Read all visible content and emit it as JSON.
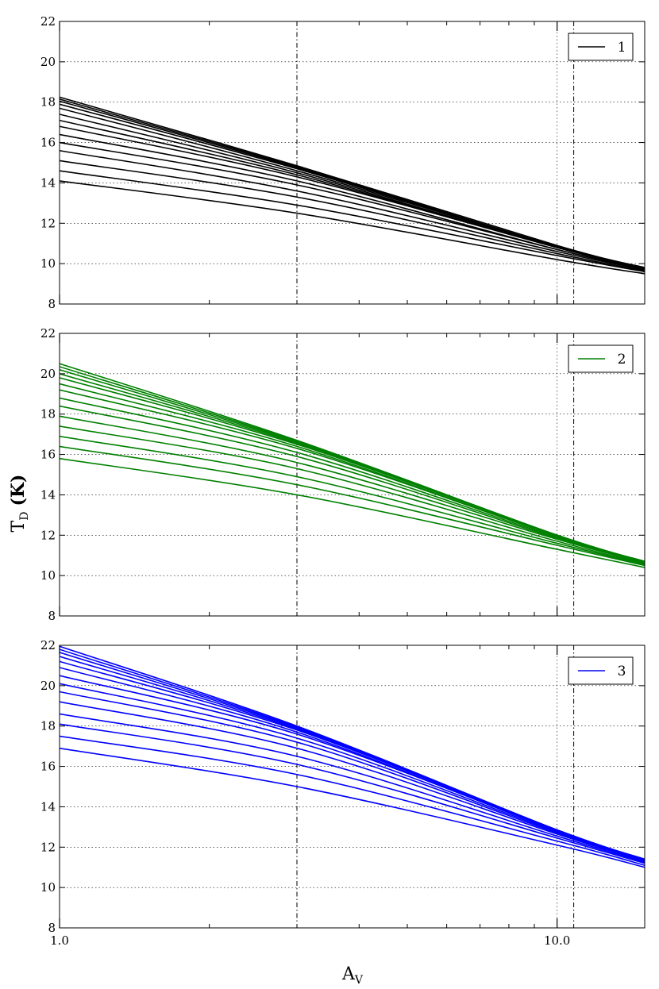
{
  "figure": {
    "ylabel_main": "T",
    "ylabel_sub": "D",
    "ylabel_unit": "(K)",
    "xlabel_main": "A",
    "xlabel_sub": "V"
  },
  "chart_data": [
    {
      "type": "line",
      "xscale": "log",
      "xlim": [
        1.0,
        15.0
      ],
      "ylim": [
        8,
        22
      ],
      "xticklabels": [],
      "yticks": [
        8,
        10,
        12,
        14,
        16,
        18,
        20,
        22
      ],
      "grid": true,
      "legend": {
        "position": "top-right",
        "label": "1"
      },
      "color": "#000000",
      "vlines": [
        3.0,
        10.0,
        10.8
      ],
      "series": [
        {
          "x": [
            1.0,
            3.0,
            10.0,
            15.0
          ],
          "values": [
            14.1,
            12.5,
            10.2,
            9.5
          ]
        },
        {
          "x": [
            1.0,
            3.0,
            10.0,
            15.0
          ],
          "values": [
            14.6,
            12.9,
            10.4,
            9.6
          ]
        },
        {
          "x": [
            1.0,
            3.0,
            10.0,
            15.0
          ],
          "values": [
            15.1,
            13.3,
            10.5,
            9.65
          ]
        },
        {
          "x": [
            1.0,
            3.0,
            10.0,
            15.0
          ],
          "values": [
            15.6,
            13.6,
            10.6,
            9.7
          ]
        },
        {
          "x": [
            1.0,
            3.0,
            10.0,
            15.0
          ],
          "values": [
            16.0,
            13.9,
            10.7,
            9.7
          ]
        },
        {
          "x": [
            1.0,
            3.0,
            10.0,
            15.0
          ],
          "values": [
            16.4,
            14.1,
            10.7,
            9.75
          ]
        },
        {
          "x": [
            1.0,
            3.0,
            10.0,
            15.0
          ],
          "values": [
            16.8,
            14.3,
            10.8,
            9.75
          ]
        },
        {
          "x": [
            1.0,
            3.0,
            10.0,
            15.0
          ],
          "values": [
            17.1,
            14.4,
            10.8,
            9.8
          ]
        },
        {
          "x": [
            1.0,
            3.0,
            10.0,
            15.0
          ],
          "values": [
            17.4,
            14.5,
            10.8,
            9.8
          ]
        },
        {
          "x": [
            1.0,
            3.0,
            10.0,
            15.0
          ],
          "values": [
            17.7,
            14.6,
            10.85,
            9.8
          ]
        },
        {
          "x": [
            1.0,
            3.0,
            10.0,
            15.0
          ],
          "values": [
            17.9,
            14.7,
            10.85,
            9.8
          ]
        },
        {
          "x": [
            1.0,
            3.0,
            10.0,
            15.0
          ],
          "values": [
            18.05,
            14.75,
            10.85,
            9.8
          ]
        },
        {
          "x": [
            1.0,
            3.0,
            10.0,
            15.0
          ],
          "values": [
            18.15,
            14.8,
            10.85,
            9.8
          ]
        },
        {
          "x": [
            1.0,
            3.0,
            10.0,
            15.0
          ],
          "values": [
            18.25,
            14.85,
            10.9,
            9.8
          ]
        }
      ]
    },
    {
      "type": "line",
      "xscale": "log",
      "xlim": [
        1.0,
        15.0
      ],
      "ylim": [
        8,
        22
      ],
      "xticklabels": [],
      "yticks": [
        8,
        10,
        12,
        14,
        16,
        18,
        20,
        22
      ],
      "grid": true,
      "legend": {
        "position": "top-right",
        "label": "2"
      },
      "color": "#008000",
      "vlines": [
        3.0,
        10.0,
        10.8
      ],
      "series": [
        {
          "x": [
            1.0,
            3.0,
            10.0,
            15.0
          ],
          "values": [
            15.8,
            14.0,
            11.3,
            10.4
          ]
        },
        {
          "x": [
            1.0,
            3.0,
            10.0,
            15.0
          ],
          "values": [
            16.4,
            14.5,
            11.5,
            10.5
          ]
        },
        {
          "x": [
            1.0,
            3.0,
            10.0,
            15.0
          ],
          "values": [
            16.9,
            14.9,
            11.6,
            10.55
          ]
        },
        {
          "x": [
            1.0,
            3.0,
            10.0,
            15.0
          ],
          "values": [
            17.4,
            15.3,
            11.7,
            10.6
          ]
        },
        {
          "x": [
            1.0,
            3.0,
            10.0,
            15.0
          ],
          "values": [
            17.9,
            15.6,
            11.8,
            10.65
          ]
        },
        {
          "x": [
            1.0,
            3.0,
            10.0,
            15.0
          ],
          "values": [
            18.4,
            15.9,
            11.85,
            10.65
          ]
        },
        {
          "x": [
            1.0,
            3.0,
            10.0,
            15.0
          ],
          "values": [
            18.8,
            16.1,
            11.9,
            10.7
          ]
        },
        {
          "x": [
            1.0,
            3.0,
            10.0,
            15.0
          ],
          "values": [
            19.2,
            16.3,
            11.95,
            10.7
          ]
        },
        {
          "x": [
            1.0,
            3.0,
            10.0,
            15.0
          ],
          "values": [
            19.5,
            16.4,
            11.95,
            10.7
          ]
        },
        {
          "x": [
            1.0,
            3.0,
            10.0,
            15.0
          ],
          "values": [
            19.8,
            16.5,
            12.0,
            10.7
          ]
        },
        {
          "x": [
            1.0,
            3.0,
            10.0,
            15.0
          ],
          "values": [
            20.0,
            16.55,
            12.0,
            10.7
          ]
        },
        {
          "x": [
            1.0,
            3.0,
            10.0,
            15.0
          ],
          "values": [
            20.2,
            16.6,
            12.0,
            10.7
          ]
        },
        {
          "x": [
            1.0,
            3.0,
            10.0,
            15.0
          ],
          "values": [
            20.35,
            16.65,
            12.0,
            10.7
          ]
        },
        {
          "x": [
            1.0,
            3.0,
            10.0,
            15.0
          ],
          "values": [
            20.5,
            16.7,
            12.0,
            10.7
          ]
        }
      ]
    },
    {
      "type": "line",
      "xscale": "log",
      "xlim": [
        1.0,
        15.0
      ],
      "ylim": [
        8,
        22
      ],
      "xticks": [
        1.0,
        10.0
      ],
      "xticklabels": [
        "1.0",
        "10.0"
      ],
      "yticks": [
        8,
        10,
        12,
        14,
        16,
        18,
        20,
        22
      ],
      "grid": true,
      "legend": {
        "position": "top-right",
        "label": "3"
      },
      "color": "#0000ff",
      "vlines": [
        3.0,
        10.0,
        10.8
      ],
      "series": [
        {
          "x": [
            1.0,
            3.0,
            10.0,
            15.0
          ],
          "values": [
            16.9,
            15.0,
            12.1,
            11.0
          ]
        },
        {
          "x": [
            1.0,
            3.0,
            10.0,
            15.0
          ],
          "values": [
            17.5,
            15.6,
            12.3,
            11.1
          ]
        },
        {
          "x": [
            1.0,
            3.0,
            10.0,
            15.0
          ],
          "values": [
            18.1,
            16.1,
            12.45,
            11.2
          ]
        },
        {
          "x": [
            1.0,
            3.0,
            10.0,
            15.0
          ],
          "values": [
            18.6,
            16.5,
            12.55,
            11.25
          ]
        },
        {
          "x": [
            1.0,
            3.0,
            10.0,
            15.0
          ],
          "values": [
            19.2,
            16.9,
            12.65,
            11.3
          ]
        },
        {
          "x": [
            1.0,
            3.0,
            10.0,
            15.0
          ],
          "values": [
            19.7,
            17.2,
            12.7,
            11.3
          ]
        },
        {
          "x": [
            1.0,
            3.0,
            10.0,
            15.0
          ],
          "values": [
            20.1,
            17.4,
            12.75,
            11.35
          ]
        },
        {
          "x": [
            1.0,
            3.0,
            10.0,
            15.0
          ],
          "values": [
            20.5,
            17.6,
            12.8,
            11.35
          ]
        },
        {
          "x": [
            1.0,
            3.0,
            10.0,
            15.0
          ],
          "values": [
            20.9,
            17.7,
            12.8,
            11.35
          ]
        },
        {
          "x": [
            1.0,
            3.0,
            10.0,
            15.0
          ],
          "values": [
            21.2,
            17.8,
            12.85,
            11.4
          ]
        },
        {
          "x": [
            1.0,
            3.0,
            10.0,
            15.0
          ],
          "values": [
            21.45,
            17.85,
            12.85,
            11.4
          ]
        },
        {
          "x": [
            1.0,
            3.0,
            10.0,
            15.0
          ],
          "values": [
            21.65,
            17.9,
            12.85,
            11.4
          ]
        },
        {
          "x": [
            1.0,
            3.0,
            10.0,
            15.0
          ],
          "values": [
            21.8,
            17.95,
            12.85,
            11.4
          ]
        },
        {
          "x": [
            1.0,
            3.0,
            10.0,
            15.0
          ],
          "values": [
            21.95,
            18.0,
            12.85,
            11.4
          ]
        }
      ]
    }
  ]
}
